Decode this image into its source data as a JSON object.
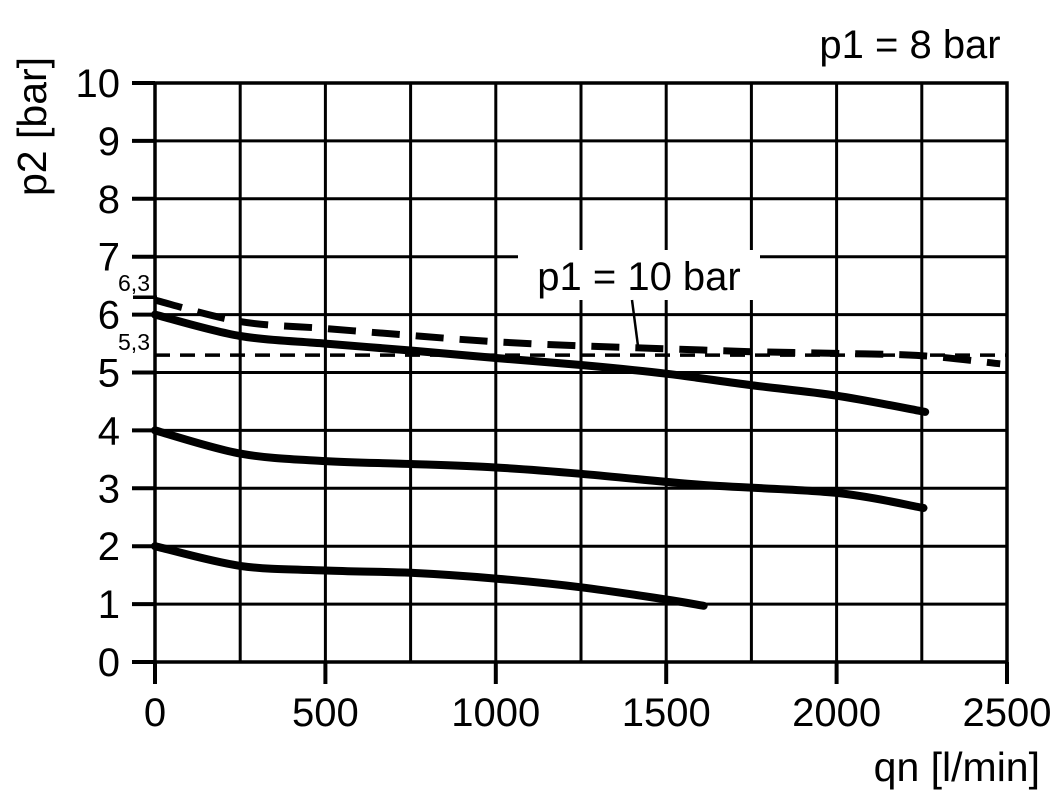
{
  "chart_data": {
    "type": "line",
    "title": "",
    "xlabel": "qn [l/min]",
    "ylabel": "p2 [bar]",
    "xlim": [
      0,
      2500
    ],
    "ylim": [
      0,
      10
    ],
    "x_ticks": [
      0,
      500,
      1000,
      1500,
      2000,
      2500
    ],
    "y_ticks": [
      0,
      1,
      2,
      3,
      4,
      5,
      6,
      7,
      8,
      9,
      10
    ],
    "x_grid_step": 250,
    "y_grid_step": 1,
    "grid": "on",
    "legend_position": "none",
    "annotations": {
      "top_right_label": "p1 = 8 bar",
      "curve_label": "p1 = 10 bar"
    },
    "reference_marks": [
      {
        "label": "6,3",
        "value": 6.3,
        "mark": "tick"
      },
      {
        "label": "5,3",
        "value": 5.3,
        "mark": "dashed-line"
      }
    ],
    "series": [
      {
        "name": "p1 = 10 bar",
        "style": "dashed",
        "points": [
          [
            0,
            6.25
          ],
          [
            250,
            5.88
          ],
          [
            500,
            5.76
          ],
          [
            750,
            5.64
          ],
          [
            1000,
            5.53
          ],
          [
            1250,
            5.46
          ],
          [
            1500,
            5.41
          ],
          [
            1750,
            5.36
          ],
          [
            2000,
            5.33
          ],
          [
            2250,
            5.29
          ],
          [
            2480,
            5.15
          ]
        ]
      },
      {
        "name": "p1 = 8 bar (upper curve, set 6 bar)",
        "style": "solid",
        "points": [
          [
            0,
            6.0
          ],
          [
            250,
            5.63
          ],
          [
            500,
            5.5
          ],
          [
            750,
            5.38
          ],
          [
            1000,
            5.25
          ],
          [
            1250,
            5.13
          ],
          [
            1500,
            4.98
          ],
          [
            1750,
            4.78
          ],
          [
            2000,
            4.6
          ],
          [
            2260,
            4.32
          ]
        ]
      },
      {
        "name": "p1 = 8 bar (middle curve, set 4 bar)",
        "style": "solid",
        "points": [
          [
            0,
            4.0
          ],
          [
            250,
            3.6
          ],
          [
            500,
            3.47
          ],
          [
            750,
            3.42
          ],
          [
            1000,
            3.36
          ],
          [
            1250,
            3.25
          ],
          [
            1600,
            3.06
          ],
          [
            2000,
            2.92
          ],
          [
            2255,
            2.66
          ]
        ]
      },
      {
        "name": "p1 = 8 bar (lower curve, set 2 bar)",
        "style": "solid",
        "points": [
          [
            0,
            2.0
          ],
          [
            250,
            1.66
          ],
          [
            500,
            1.58
          ],
          [
            750,
            1.54
          ],
          [
            1000,
            1.44
          ],
          [
            1250,
            1.29
          ],
          [
            1500,
            1.08
          ],
          [
            1610,
            0.97
          ]
        ]
      }
    ]
  }
}
